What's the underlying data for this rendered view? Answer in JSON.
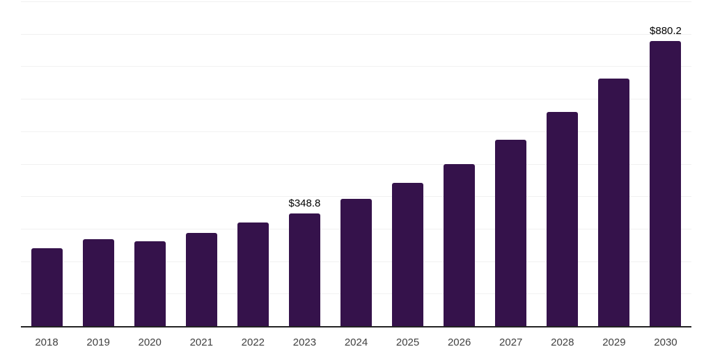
{
  "chart_data": {
    "type": "bar",
    "title": "",
    "xlabel": "",
    "ylabel": "",
    "categories": [
      "2018",
      "2019",
      "2020",
      "2021",
      "2022",
      "2023",
      "2024",
      "2025",
      "2026",
      "2027",
      "2028",
      "2029",
      "2030"
    ],
    "values": [
      242,
      270,
      263,
      289,
      321,
      348.8,
      394,
      443,
      502,
      575,
      661,
      764,
      880.2
    ],
    "value_labels": [
      "",
      "",
      "",
      "",
      "",
      "$348.8",
      "",
      "",
      "",
      "",
      "",
      "",
      "$880.2"
    ],
    "ylim": [
      0,
      1000
    ],
    "gridline_step": 100,
    "grid": true,
    "legend": "none",
    "y_axis_labels_visible": false,
    "colors": {
      "bar": "#35124b",
      "gridline": "#f1f1f1",
      "axis_line": "#222222",
      "tick_label": "#404040",
      "value_label": "#000000",
      "background": "#ffffff"
    }
  }
}
